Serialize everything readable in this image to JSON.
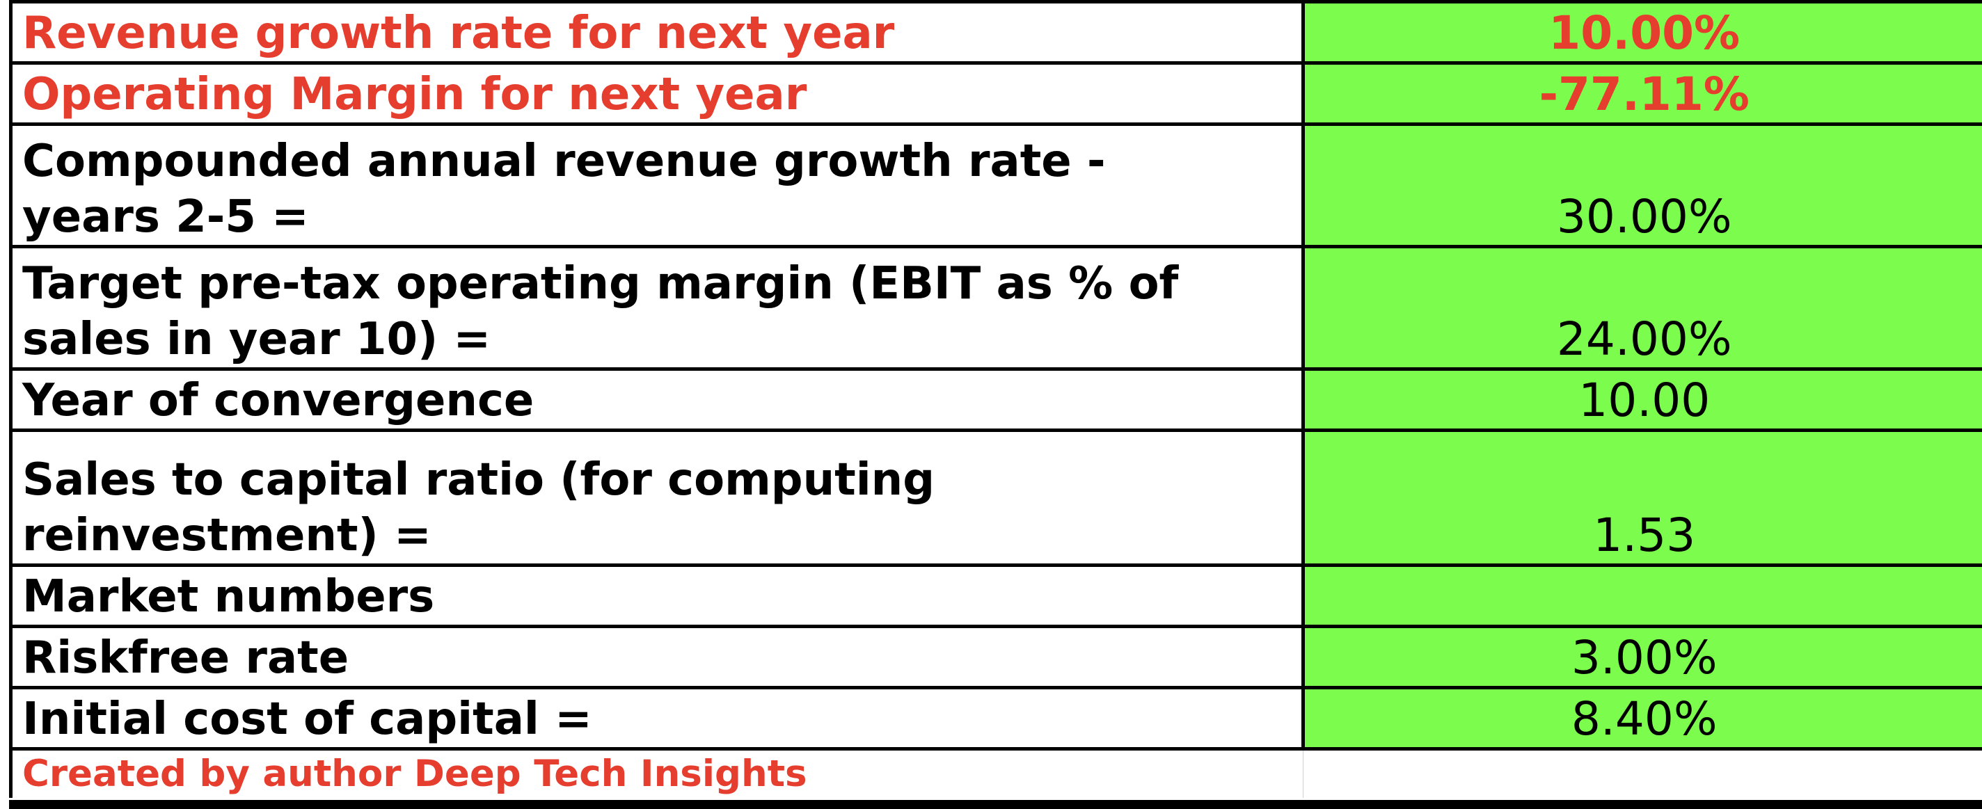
{
  "rows": [
    {
      "label": "Revenue growth rate for next year",
      "value": "10.00%"
    },
    {
      "label": "Operating Margin for next year",
      "value": "-77.11%"
    },
    {
      "label_line1": "Compounded annual revenue growth rate -",
      "label_line2": "years 2-5 =",
      "value": "30.00%"
    },
    {
      "label_line1": "Target pre-tax operating margin (EBIT as % of",
      "label_line2": "sales in year 10) =",
      "value": "24.00%"
    },
    {
      "label": "Year of convergence",
      "value": "10.00"
    },
    {
      "label_line1": "Sales to capital ratio  (for computing",
      "label_line2": "reinvestment) =",
      "value": "1.53"
    },
    {
      "label": "Market numbers",
      "value": ""
    },
    {
      "label": "Riskfree rate",
      "value": "3.00%"
    },
    {
      "label": "Initial cost of capital =",
      "value": "8.40%"
    }
  ],
  "footer": {
    "credit": "Created by author Deep Tech Insights"
  },
  "colors": {
    "input_cell": "#7cfc4c",
    "highlight_text": "#e53e2f"
  }
}
